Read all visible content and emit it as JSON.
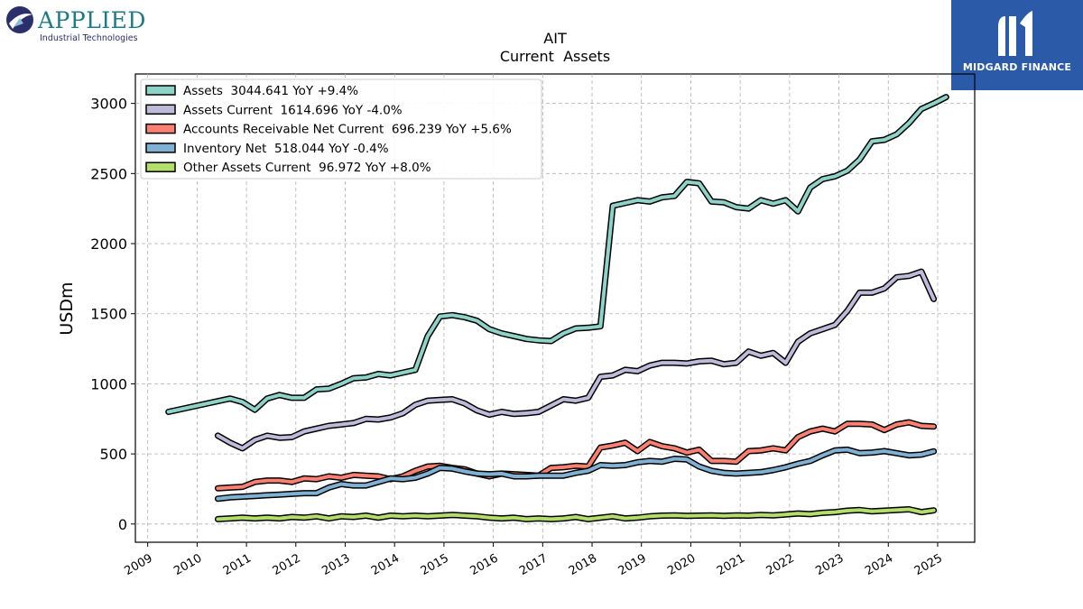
{
  "logos": {
    "left": {
      "word": "APPLIED",
      "sub": "Industrial Technologies",
      "icon": "applied-globe-icon"
    },
    "right": {
      "name": "MIDGARD FINANCE",
      "icon": "midgard-m-icon"
    }
  },
  "chart_data": {
    "type": "line",
    "title": "AIT",
    "subtitle": "Current  Assets",
    "ylabel": "USDm",
    "xlabel": "",
    "ylim": [
      -130,
      3210
    ],
    "xlim": [
      2008.75,
      2025.75
    ],
    "yticks": [
      0,
      500,
      1000,
      1500,
      2000,
      2500,
      3000
    ],
    "xticks": [
      2009,
      2010,
      2011,
      2012,
      2013,
      2014,
      2015,
      2016,
      2017,
      2018,
      2019,
      2020,
      2021,
      2022,
      2023,
      2024,
      2025
    ],
    "grid": true,
    "legend_position": "top-left",
    "series": [
      {
        "name": "Assets  3044.641 YoY +9.4%",
        "color": "#8dd3c7",
        "points": [
          [
            2009.42,
            800
          ],
          [
            2010.67,
            895
          ],
          [
            2010.92,
            870
          ],
          [
            2011.17,
            815
          ],
          [
            2011.42,
            895
          ],
          [
            2011.67,
            920
          ],
          [
            2011.92,
            900
          ],
          [
            2012.17,
            900
          ],
          [
            2012.42,
            960
          ],
          [
            2012.67,
            965
          ],
          [
            2012.92,
            1000
          ],
          [
            2013.17,
            1040
          ],
          [
            2013.42,
            1045
          ],
          [
            2013.67,
            1070
          ],
          [
            2013.92,
            1060
          ],
          [
            2014.17,
            1080
          ],
          [
            2014.42,
            1100
          ],
          [
            2014.67,
            1340
          ],
          [
            2014.92,
            1480
          ],
          [
            2015.17,
            1490
          ],
          [
            2015.42,
            1475
          ],
          [
            2015.67,
            1450
          ],
          [
            2015.92,
            1390
          ],
          [
            2016.17,
            1360
          ],
          [
            2016.42,
            1340
          ],
          [
            2016.67,
            1320
          ],
          [
            2016.92,
            1310
          ],
          [
            2017.17,
            1305
          ],
          [
            2017.42,
            1360
          ],
          [
            2017.67,
            1395
          ],
          [
            2017.92,
            1400
          ],
          [
            2018.17,
            1410
          ],
          [
            2018.42,
            2270
          ],
          [
            2018.67,
            2290
          ],
          [
            2018.92,
            2310
          ],
          [
            2019.17,
            2300
          ],
          [
            2019.42,
            2330
          ],
          [
            2019.67,
            2340
          ],
          [
            2019.92,
            2440
          ],
          [
            2020.17,
            2430
          ],
          [
            2020.42,
            2300
          ],
          [
            2020.67,
            2295
          ],
          [
            2020.92,
            2260
          ],
          [
            2021.17,
            2250
          ],
          [
            2021.42,
            2310
          ],
          [
            2021.67,
            2285
          ],
          [
            2021.92,
            2310
          ],
          [
            2022.17,
            2230
          ],
          [
            2022.42,
            2400
          ],
          [
            2022.67,
            2460
          ],
          [
            2022.92,
            2480
          ],
          [
            2023.17,
            2520
          ],
          [
            2023.42,
            2600
          ],
          [
            2023.67,
            2730
          ],
          [
            2023.92,
            2740
          ],
          [
            2024.17,
            2780
          ],
          [
            2024.42,
            2860
          ],
          [
            2024.67,
            2960
          ],
          [
            2024.92,
            3000
          ],
          [
            2025.17,
            3045
          ]
        ]
      },
      {
        "name": "Assets Current  1614.696 YoY -4.0%",
        "color": "#bebada",
        "points": [
          [
            2010.42,
            630
          ],
          [
            2010.67,
            580
          ],
          [
            2010.92,
            540
          ],
          [
            2011.17,
            600
          ],
          [
            2011.42,
            630
          ],
          [
            2011.67,
            615
          ],
          [
            2011.92,
            620
          ],
          [
            2012.17,
            660
          ],
          [
            2012.42,
            680
          ],
          [
            2012.67,
            700
          ],
          [
            2012.92,
            710
          ],
          [
            2013.17,
            720
          ],
          [
            2013.42,
            750
          ],
          [
            2013.67,
            745
          ],
          [
            2013.92,
            760
          ],
          [
            2014.17,
            790
          ],
          [
            2014.42,
            850
          ],
          [
            2014.67,
            880
          ],
          [
            2014.92,
            885
          ],
          [
            2015.17,
            890
          ],
          [
            2015.42,
            860
          ],
          [
            2015.67,
            810
          ],
          [
            2015.92,
            780
          ],
          [
            2016.17,
            800
          ],
          [
            2016.42,
            785
          ],
          [
            2016.67,
            790
          ],
          [
            2016.92,
            800
          ],
          [
            2017.17,
            845
          ],
          [
            2017.42,
            890
          ],
          [
            2017.67,
            880
          ],
          [
            2017.92,
            900
          ],
          [
            2018.17,
            1050
          ],
          [
            2018.42,
            1060
          ],
          [
            2018.67,
            1100
          ],
          [
            2018.92,
            1090
          ],
          [
            2019.17,
            1130
          ],
          [
            2019.42,
            1150
          ],
          [
            2019.67,
            1150
          ],
          [
            2019.92,
            1145
          ],
          [
            2020.17,
            1160
          ],
          [
            2020.42,
            1165
          ],
          [
            2020.67,
            1140
          ],
          [
            2020.92,
            1150
          ],
          [
            2021.17,
            1230
          ],
          [
            2021.42,
            1200
          ],
          [
            2021.67,
            1220
          ],
          [
            2021.92,
            1150
          ],
          [
            2022.17,
            1300
          ],
          [
            2022.42,
            1360
          ],
          [
            2022.67,
            1390
          ],
          [
            2022.92,
            1420
          ],
          [
            2023.17,
            1520
          ],
          [
            2023.42,
            1650
          ],
          [
            2023.67,
            1650
          ],
          [
            2023.92,
            1680
          ],
          [
            2024.17,
            1760
          ],
          [
            2024.42,
            1770
          ],
          [
            2024.67,
            1800
          ],
          [
            2024.92,
            1605
          ]
        ]
      },
      {
        "name": "Accounts Receivable Net Current  696.239 YoY +5.6%",
        "color": "#fb8072",
        "points": [
          [
            2010.42,
            255
          ],
          [
            2010.67,
            260
          ],
          [
            2010.92,
            265
          ],
          [
            2011.17,
            300
          ],
          [
            2011.42,
            310
          ],
          [
            2011.67,
            310
          ],
          [
            2011.92,
            300
          ],
          [
            2012.17,
            325
          ],
          [
            2012.42,
            320
          ],
          [
            2012.67,
            340
          ],
          [
            2012.92,
            330
          ],
          [
            2013.17,
            350
          ],
          [
            2013.42,
            345
          ],
          [
            2013.67,
            340
          ],
          [
            2013.92,
            320
          ],
          [
            2014.17,
            340
          ],
          [
            2014.42,
            380
          ],
          [
            2014.67,
            410
          ],
          [
            2014.92,
            415
          ],
          [
            2015.17,
            400
          ],
          [
            2015.42,
            390
          ],
          [
            2015.67,
            360
          ],
          [
            2015.92,
            340
          ],
          [
            2016.17,
            360
          ],
          [
            2016.42,
            355
          ],
          [
            2016.67,
            350
          ],
          [
            2016.92,
            345
          ],
          [
            2017.17,
            400
          ],
          [
            2017.42,
            405
          ],
          [
            2017.67,
            415
          ],
          [
            2017.92,
            410
          ],
          [
            2018.17,
            545
          ],
          [
            2018.42,
            560
          ],
          [
            2018.67,
            580
          ],
          [
            2018.92,
            520
          ],
          [
            2019.17,
            585
          ],
          [
            2019.42,
            555
          ],
          [
            2019.67,
            540
          ],
          [
            2019.92,
            510
          ],
          [
            2020.17,
            530
          ],
          [
            2020.42,
            450
          ],
          [
            2020.67,
            450
          ],
          [
            2020.92,
            445
          ],
          [
            2021.17,
            520
          ],
          [
            2021.42,
            525
          ],
          [
            2021.67,
            540
          ],
          [
            2021.92,
            525
          ],
          [
            2022.17,
            620
          ],
          [
            2022.42,
            660
          ],
          [
            2022.67,
            680
          ],
          [
            2022.92,
            660
          ],
          [
            2023.17,
            715
          ],
          [
            2023.42,
            715
          ],
          [
            2023.67,
            710
          ],
          [
            2023.92,
            670
          ],
          [
            2024.17,
            710
          ],
          [
            2024.42,
            725
          ],
          [
            2024.67,
            700
          ],
          [
            2024.92,
            695
          ]
        ]
      },
      {
        "name": "Inventory Net  518.044 YoY -0.4%",
        "color": "#80b1d3",
        "points": [
          [
            2010.42,
            180
          ],
          [
            2010.67,
            190
          ],
          [
            2010.92,
            195
          ],
          [
            2011.17,
            200
          ],
          [
            2011.42,
            205
          ],
          [
            2011.67,
            210
          ],
          [
            2011.92,
            215
          ],
          [
            2012.17,
            220
          ],
          [
            2012.42,
            220
          ],
          [
            2012.67,
            260
          ],
          [
            2012.92,
            285
          ],
          [
            2013.17,
            275
          ],
          [
            2013.42,
            275
          ],
          [
            2013.67,
            300
          ],
          [
            2013.92,
            325
          ],
          [
            2014.17,
            320
          ],
          [
            2014.42,
            330
          ],
          [
            2014.67,
            360
          ],
          [
            2014.92,
            400
          ],
          [
            2015.17,
            395
          ],
          [
            2015.42,
            375
          ],
          [
            2015.67,
            360
          ],
          [
            2015.92,
            355
          ],
          [
            2016.17,
            360
          ],
          [
            2016.42,
            340
          ],
          [
            2016.67,
            340
          ],
          [
            2016.92,
            345
          ],
          [
            2017.17,
            345
          ],
          [
            2017.42,
            345
          ],
          [
            2017.67,
            365
          ],
          [
            2017.92,
            380
          ],
          [
            2018.17,
            420
          ],
          [
            2018.42,
            415
          ],
          [
            2018.67,
            420
          ],
          [
            2018.92,
            440
          ],
          [
            2019.17,
            450
          ],
          [
            2019.42,
            445
          ],
          [
            2019.67,
            465
          ],
          [
            2019.92,
            460
          ],
          [
            2020.17,
            410
          ],
          [
            2020.42,
            380
          ],
          [
            2020.67,
            365
          ],
          [
            2020.92,
            360
          ],
          [
            2021.17,
            365
          ],
          [
            2021.42,
            370
          ],
          [
            2021.67,
            385
          ],
          [
            2021.92,
            405
          ],
          [
            2022.17,
            430
          ],
          [
            2022.42,
            450
          ],
          [
            2022.67,
            490
          ],
          [
            2022.92,
            525
          ],
          [
            2023.17,
            530
          ],
          [
            2023.42,
            505
          ],
          [
            2023.67,
            510
          ],
          [
            2023.92,
            520
          ],
          [
            2024.17,
            505
          ],
          [
            2024.42,
            490
          ],
          [
            2024.67,
            495
          ],
          [
            2024.92,
            518
          ]
        ]
      },
      {
        "name": "Other Assets Current  96.972 YoY +8.0%",
        "color": "#b3de69",
        "points": [
          [
            2010.42,
            35
          ],
          [
            2010.67,
            40
          ],
          [
            2010.92,
            45
          ],
          [
            2011.17,
            40
          ],
          [
            2011.42,
            45
          ],
          [
            2011.67,
            40
          ],
          [
            2011.92,
            50
          ],
          [
            2012.17,
            45
          ],
          [
            2012.42,
            55
          ],
          [
            2012.67,
            40
          ],
          [
            2012.92,
            55
          ],
          [
            2013.17,
            50
          ],
          [
            2013.42,
            60
          ],
          [
            2013.67,
            45
          ],
          [
            2013.92,
            60
          ],
          [
            2014.17,
            55
          ],
          [
            2014.42,
            60
          ],
          [
            2014.67,
            55
          ],
          [
            2014.92,
            60
          ],
          [
            2015.17,
            65
          ],
          [
            2015.42,
            60
          ],
          [
            2015.67,
            55
          ],
          [
            2015.92,
            45
          ],
          [
            2016.17,
            40
          ],
          [
            2016.42,
            45
          ],
          [
            2016.67,
            35
          ],
          [
            2016.92,
            40
          ],
          [
            2017.17,
            35
          ],
          [
            2017.42,
            40
          ],
          [
            2017.67,
            50
          ],
          [
            2017.92,
            35
          ],
          [
            2018.17,
            45
          ],
          [
            2018.42,
            55
          ],
          [
            2018.67,
            40
          ],
          [
            2018.92,
            45
          ],
          [
            2019.17,
            55
          ],
          [
            2019.42,
            60
          ],
          [
            2019.67,
            62
          ],
          [
            2019.92,
            58
          ],
          [
            2020.17,
            60
          ],
          [
            2020.42,
            62
          ],
          [
            2020.67,
            58
          ],
          [
            2020.92,
            62
          ],
          [
            2021.17,
            60
          ],
          [
            2021.42,
            65
          ],
          [
            2021.67,
            62
          ],
          [
            2021.92,
            68
          ],
          [
            2022.17,
            75
          ],
          [
            2022.42,
            70
          ],
          [
            2022.67,
            80
          ],
          [
            2022.92,
            85
          ],
          [
            2023.17,
            95
          ],
          [
            2023.42,
            100
          ],
          [
            2023.67,
            90
          ],
          [
            2023.92,
            95
          ],
          [
            2024.17,
            100
          ],
          [
            2024.42,
            105
          ],
          [
            2024.67,
            85
          ],
          [
            2024.92,
            97
          ]
        ]
      }
    ]
  }
}
